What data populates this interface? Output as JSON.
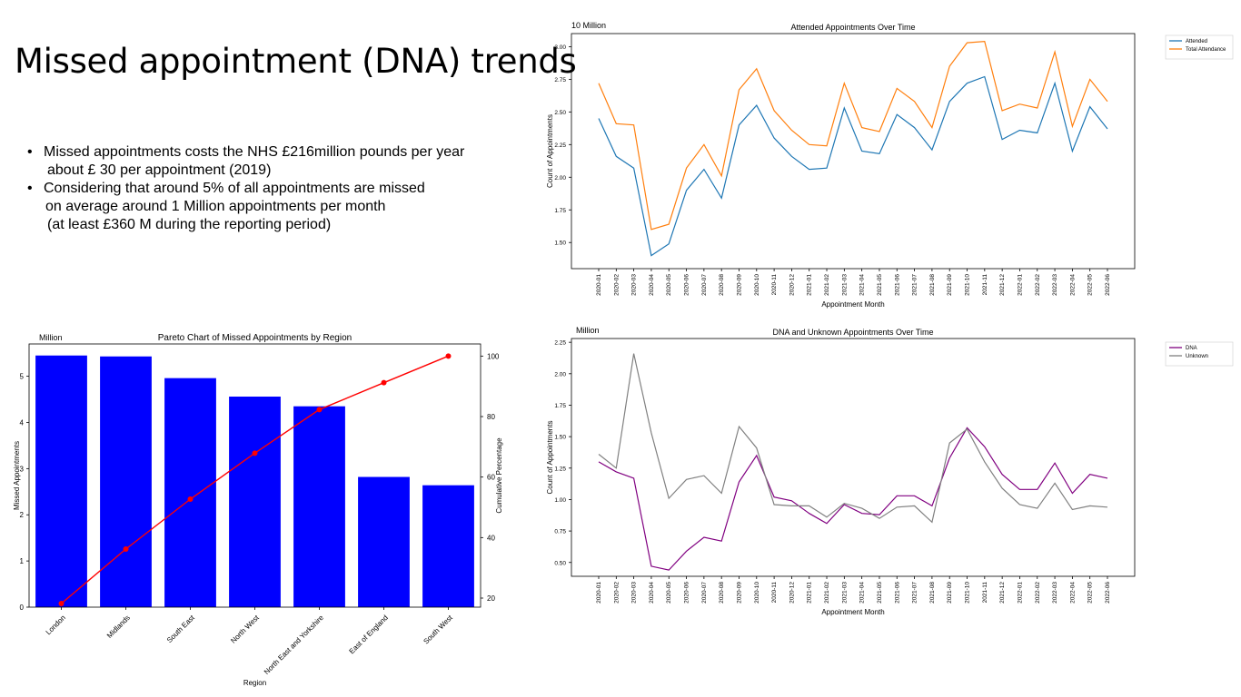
{
  "slide": {
    "title": "Missed appointment (DNA) trends",
    "bullets": [
      {
        "lines": [
          "Missed appointments costs the NHS £216million pounds per year",
          "about £ 30 per appointment (2019)"
        ]
      },
      {
        "lines": [
          "Considering that around 5% of all appointments are missed",
          "on average around 1 Million appointments per month",
          "(at least £360 M during the reporting period)"
        ]
      }
    ]
  },
  "chart_data": [
    {
      "type": "line",
      "title": "Attended Appointments Over Time",
      "xlabel": "Appointment Month",
      "ylabel": "Count of Appointments",
      "scale_label": "10 Million",
      "ylim": [
        1.3,
        3.1
      ],
      "yticks": [
        "1.50",
        "1.75",
        "2.00",
        "2.25",
        "2.50",
        "2.75",
        "3.00"
      ],
      "legend_position": "right",
      "x": [
        "2020-01",
        "2020-02",
        "2020-03",
        "2020-04",
        "2020-05",
        "2020-06",
        "2020-07",
        "2020-08",
        "2020-09",
        "2020-10",
        "2020-11",
        "2020-12",
        "2021-01",
        "2021-02",
        "2021-03",
        "2021-04",
        "2021-05",
        "2021-06",
        "2021-07",
        "2021-08",
        "2021-09",
        "2021-10",
        "2021-11",
        "2021-12",
        "2022-01",
        "2022-02",
        "2022-03",
        "2022-04",
        "2022-05",
        "2022-06"
      ],
      "series": [
        {
          "name": "Attended",
          "color": "#1f77b4",
          "values": [
            2.45,
            2.16,
            2.07,
            1.4,
            1.49,
            1.9,
            2.06,
            1.84,
            2.4,
            2.55,
            2.3,
            2.16,
            2.06,
            2.07,
            2.53,
            2.2,
            2.18,
            2.48,
            2.38,
            2.21,
            2.58,
            2.72,
            2.77,
            2.29,
            2.36,
            2.34,
            2.72,
            2.2,
            2.54,
            2.37
          ]
        },
        {
          "name": "Total Attendance",
          "color": "#ff7f0e",
          "values": [
            2.72,
            2.41,
            2.4,
            1.6,
            1.64,
            2.07,
            2.25,
            2.01,
            2.67,
            2.83,
            2.51,
            2.36,
            2.25,
            2.24,
            2.72,
            2.38,
            2.35,
            2.68,
            2.58,
            2.38,
            2.85,
            3.03,
            3.04,
            2.51,
            2.56,
            2.53,
            2.96,
            2.39,
            2.75,
            2.58
          ]
        }
      ]
    },
    {
      "type": "bar",
      "title": "Pareto Chart of Missed Appointments by Region",
      "xlabel": "Region",
      "ylabel": "Missed Appointments",
      "y2label": "Cumulative Percentage",
      "scale_label": "Million",
      "ylim": [
        0,
        5.7
      ],
      "y2lim": [
        17,
        104
      ],
      "yticks": [
        "0",
        "1",
        "2",
        "3",
        "4",
        "5"
      ],
      "y2ticks": [
        "20",
        "40",
        "60",
        "80",
        "100"
      ],
      "categories": [
        "London",
        "Midlands",
        "South East",
        "North West",
        "North East and Yorkshire",
        "East of England",
        "South West"
      ],
      "series": [
        {
          "kind": "bar",
          "color": "#0000ff",
          "values": [
            5.45,
            5.43,
            4.96,
            4.56,
            4.35,
            2.82,
            2.64
          ]
        },
        {
          "kind": "line",
          "color": "#ff0000",
          "values": [
            18.2,
            36.2,
            52.7,
            67.9,
            82.3,
            91.2,
            100
          ]
        }
      ]
    },
    {
      "type": "line",
      "title": "DNA and Unknown Appointments Over Time",
      "xlabel": "Appointment Month",
      "ylabel": "Count of Appointments",
      "scale_label": "Million",
      "ylim": [
        0.39,
        2.28
      ],
      "yticks": [
        "0.50",
        "0.75",
        "1.00",
        "1.25",
        "1.50",
        "1.75",
        "2.00",
        "2.25"
      ],
      "legend_position": "right",
      "x": [
        "2020-01",
        "2020-02",
        "2020-03",
        "2020-04",
        "2020-05",
        "2020-06",
        "2020-07",
        "2020-08",
        "2020-09",
        "2020-10",
        "2020-11",
        "2020-12",
        "2021-01",
        "2021-02",
        "2021-03",
        "2021-04",
        "2021-05",
        "2021-06",
        "2021-07",
        "2021-08",
        "2021-09",
        "2021-10",
        "2021-11",
        "2021-12",
        "2022-01",
        "2022-02",
        "2022-03",
        "2022-04",
        "2022-05",
        "2022-06"
      ],
      "series": [
        {
          "name": "DNA",
          "color": "#800080",
          "values": [
            1.3,
            1.22,
            1.17,
            0.47,
            0.44,
            0.59,
            0.7,
            0.67,
            1.14,
            1.35,
            1.02,
            0.99,
            0.89,
            0.81,
            0.96,
            0.89,
            0.88,
            1.03,
            1.03,
            0.95,
            1.33,
            1.57,
            1.42,
            1.2,
            1.08,
            1.08,
            1.29,
            1.05,
            1.2,
            1.17
          ]
        },
        {
          "name": "Unknown",
          "color": "#808080",
          "values": [
            1.36,
            1.25,
            2.16,
            1.53,
            1.01,
            1.16,
            1.19,
            1.05,
            1.58,
            1.41,
            0.96,
            0.95,
            0.95,
            0.86,
            0.97,
            0.93,
            0.85,
            0.94,
            0.95,
            0.82,
            1.45,
            1.56,
            1.3,
            1.09,
            0.96,
            0.93,
            1.13,
            0.92,
            0.95,
            0.94
          ]
        }
      ]
    }
  ]
}
